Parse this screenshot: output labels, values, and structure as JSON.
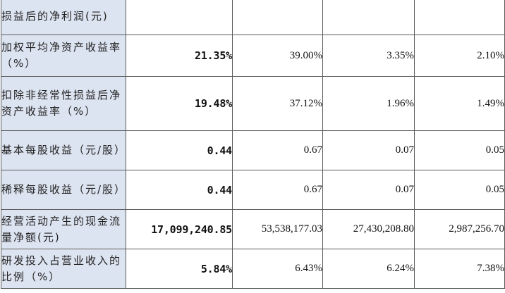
{
  "table": {
    "rows": [
      {
        "label": "损益后的净利润(元)",
        "values": [
          "",
          "",
          "",
          ""
        ]
      },
      {
        "label": "加权平均净资产收益率（%）",
        "values": [
          "21.35%",
          "39.00%",
          "3.35%",
          "2.10%"
        ]
      },
      {
        "label": "扣除非经常性损益后净资产收益率（%）",
        "values": [
          "19.48%",
          "37.12%",
          "1.96%",
          "1.49%"
        ]
      },
      {
        "label": "基本每股收益（元/股）",
        "values": [
          "0.44",
          "0.67",
          "0.07",
          "0.05"
        ]
      },
      {
        "label": "稀释每股收益（元/股）",
        "values": [
          "0.44",
          "0.67",
          "0.07",
          "0.05"
        ]
      },
      {
        "label": "经营活动产生的现金流量净额(元)",
        "values": [
          "17,099,240.85",
          "53,538,177.03",
          "27,430,208.80",
          "2,987,256.70"
        ]
      },
      {
        "label": "研发投入占营业收入的比例（%）",
        "values": [
          "5.84%",
          "6.43%",
          "6.24%",
          "7.38%"
        ]
      }
    ]
  }
}
